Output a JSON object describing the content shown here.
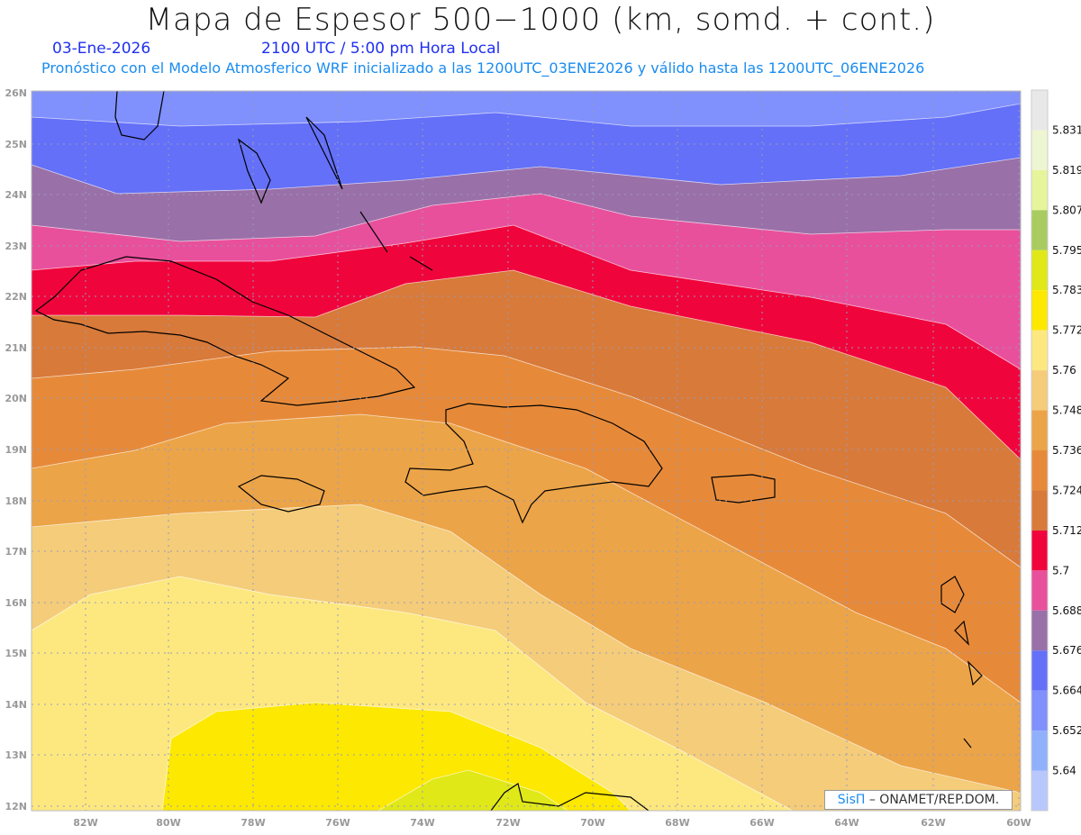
{
  "header": {
    "title": "Mapa de Espesor 500−1000 (km, somd. + cont.)",
    "date": "03-Ene-2026",
    "time": "2100 UTC / 5:00 pm Hora Local",
    "forecast_info": "Pronóstico con el Modelo Atmosferico WRF inicializado a las 1200UTC_03ENE2026 y válido hasta las  1200UTC_06ENE2026"
  },
  "map": {
    "lon_labels": [
      "82W",
      "80W",
      "78W",
      "76W",
      "74W",
      "72W",
      "70W",
      "68W",
      "66W",
      "64W",
      "62W",
      "60W"
    ],
    "lat_labels": [
      "26N",
      "25N",
      "24N",
      "23N",
      "22N",
      "21N",
      "20N",
      "19N",
      "18N",
      "17N",
      "16N",
      "15N",
      "14N",
      "13N",
      "12N"
    ]
  },
  "colorbar": {
    "colors": [
      "#e8e8e8",
      "#eef5d2",
      "#e6f59c",
      "#a8cc60",
      "#e0e818",
      "#fce800",
      "#fde880",
      "#f4cc7a",
      "#eca448",
      "#e68a3a",
      "#d87a3a",
      "#f0043c",
      "#e8509c",
      "#9a70a8",
      "#6470f8",
      "#8090fc",
      "#90b0fc",
      "#b8c8fc"
    ],
    "labels": [
      "5.831",
      "5.819",
      "5.807",
      "5.795",
      "5.783",
      "5.772",
      "5.76",
      "5.748",
      "5.736",
      "5.724",
      "5.712",
      "5.7",
      "5.688",
      "5.676",
      "5.664",
      "5.652",
      "5.64"
    ]
  },
  "credit": {
    "brand": "SisΠ",
    "text": " – ONAMET/REP.DOM."
  }
}
